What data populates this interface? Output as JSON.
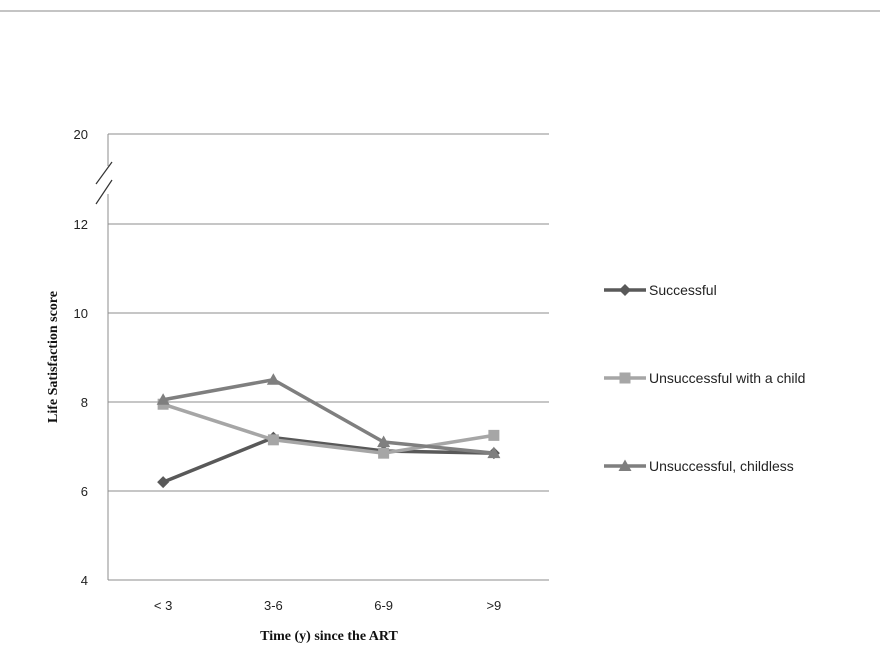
{
  "chart_data": {
    "type": "line",
    "title": "",
    "xlabel": "Time (y) since the ART",
    "ylabel": "Life Satisfaction score",
    "categories": [
      "< 3",
      "3-6",
      "6-9",
      ">9"
    ],
    "y_ticks": [
      "4",
      "6",
      "8",
      "10",
      "12",
      "20"
    ],
    "ylim": [
      4,
      20
    ],
    "axis_break": "between 12 and 20",
    "grid": true,
    "legend_position": "right",
    "series": [
      {
        "name": "Successful",
        "values": [
          6.2,
          7.2,
          6.9,
          6.85
        ],
        "marker": "diamond",
        "color": "#595959"
      },
      {
        "name": "Unsuccessful with a child",
        "values": [
          7.95,
          7.15,
          6.85,
          7.25
        ],
        "marker": "square",
        "color": "#a6a6a6"
      },
      {
        "name": "Unsuccessful, childless",
        "values": [
          8.05,
          8.5,
          7.1,
          6.85
        ],
        "marker": "triangle",
        "color": "#7f7f7f"
      }
    ]
  }
}
